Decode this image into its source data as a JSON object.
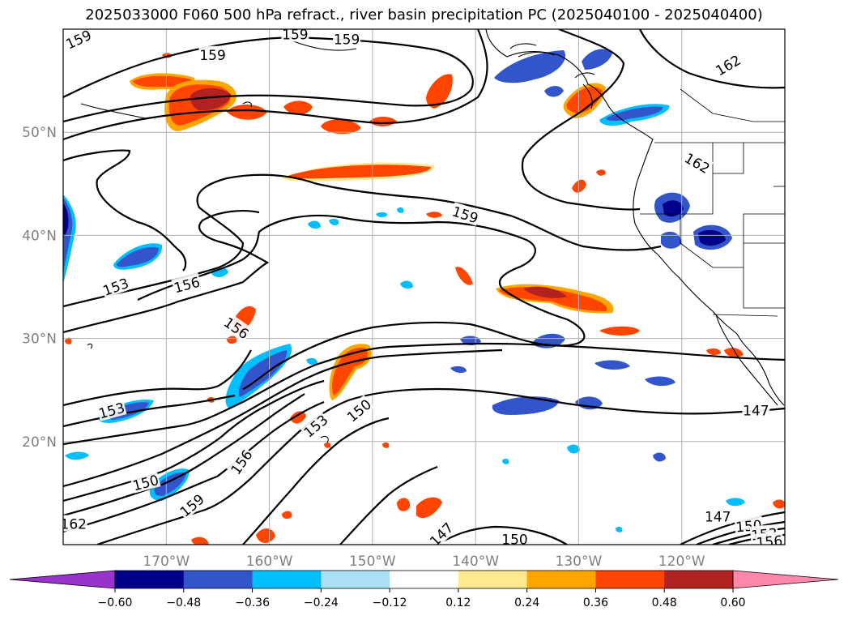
{
  "title": "2025033000 F060 500 hPa refract., river basin precipitation PC (2025040100 - 2025040400)",
  "map": {
    "projection": "cylindrical",
    "lon_range": [
      -180,
      -110
    ],
    "lat_range": [
      10,
      60
    ],
    "grid": true,
    "lat_labels": [
      {
        "lat": 50,
        "text": "50°N"
      },
      {
        "lat": 40,
        "text": "40°N"
      },
      {
        "lat": 30,
        "text": "30°N"
      },
      {
        "lat": 20,
        "text": "20°N"
      }
    ],
    "lon_labels": [
      {
        "lon": -170,
        "text": "170°W"
      },
      {
        "lon": -160,
        "text": "160°W"
      },
      {
        "lon": -150,
        "text": "150°W"
      },
      {
        "lon": -140,
        "text": "140°W"
      },
      {
        "lon": -130,
        "text": "130°W"
      },
      {
        "lon": -120,
        "text": "120°W"
      }
    ],
    "contour_labels": [
      {
        "text": "159",
        "lon": -178.5,
        "lat": 59.0,
        "rot": -25
      },
      {
        "text": "159",
        "lon": -165.5,
        "lat": 57.5,
        "rot": 0
      },
      {
        "text": "159",
        "lon": -157.5,
        "lat": 59.5,
        "rot": 0
      },
      {
        "text": "159",
        "lon": -152.5,
        "lat": 59.0,
        "rot": 0
      },
      {
        "text": "162",
        "lon": -115.5,
        "lat": 56.5,
        "rot": -30
      },
      {
        "text": "162",
        "lon": -118.5,
        "lat": 47.0,
        "rot": 30
      },
      {
        "text": "159",
        "lon": -141.0,
        "lat": 42.0,
        "rot": 18
      },
      {
        "text": "153",
        "lon": -174.9,
        "lat": 35.0,
        "rot": -20
      },
      {
        "text": "156",
        "lon": -168.0,
        "lat": 35.2,
        "rot": -15
      },
      {
        "text": "156",
        "lon": -163.2,
        "lat": 31.0,
        "rot": 35
      },
      {
        "text": "153",
        "lon": -175.3,
        "lat": 23.0,
        "rot": -15
      },
      {
        "text": "150",
        "lon": -151.3,
        "lat": 23.0,
        "rot": -40
      },
      {
        "text": "153",
        "lon": -155.5,
        "lat": 21.5,
        "rot": -40
      },
      {
        "text": "156",
        "lon": -162.7,
        "lat": 18.0,
        "rot": -55
      },
      {
        "text": "150",
        "lon": -172.0,
        "lat": 16.0,
        "rot": -15
      },
      {
        "text": "159",
        "lon": -167.5,
        "lat": 13.8,
        "rot": -40
      },
      {
        "text": "162",
        "lon": -179.0,
        "lat": 12.0,
        "rot": 0
      },
      {
        "text": "147",
        "lon": -143.3,
        "lat": 11.0,
        "rot": -45
      },
      {
        "text": "150",
        "lon": -136.2,
        "lat": 10.5,
        "rot": 0
      },
      {
        "text": "147",
        "lon": -112.8,
        "lat": 23.0,
        "rot": 0
      },
      {
        "text": "147",
        "lon": -116.5,
        "lat": 12.7,
        "rot": 0
      },
      {
        "text": "150",
        "lon": -113.5,
        "lat": 11.8,
        "rot": -5
      },
      {
        "text": "153",
        "lon": -112.0,
        "lat": 11.0,
        "rot": -5
      },
      {
        "text": "156",
        "lon": -111.5,
        "lat": 10.3,
        "rot": -5
      }
    ]
  },
  "colorbar": {
    "levels": [
      -0.6,
      -0.48,
      -0.36,
      -0.24,
      -0.12,
      0.12,
      0.24,
      0.36,
      0.48,
      0.6
    ],
    "tick_labels": [
      "−0.60",
      "−0.48",
      "−0.36",
      "−0.24",
      "−0.12",
      "0.12",
      "0.24",
      "0.36",
      "0.48",
      "0.60"
    ],
    "colors": [
      "#9933cc",
      "#00008b",
      "#3355cc",
      "#00bfff",
      "#aadff5",
      "#ffffff",
      "#ffe98f",
      "#ffa500",
      "#ff4500",
      "#b22222",
      "#ff88aa"
    ],
    "extend": "both"
  }
}
